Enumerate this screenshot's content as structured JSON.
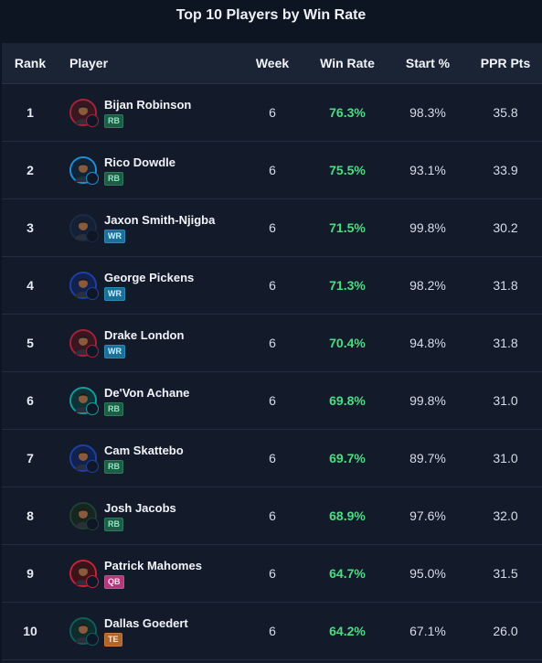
{
  "title": "Top 10 Players by Win Rate",
  "columns": {
    "rank": "Rank",
    "player": "Player",
    "week": "Week",
    "win_rate": "Win Rate",
    "start_pct": "Start %",
    "ppr": "PPR Pts"
  },
  "colors": {
    "win_rate": "#4ade80",
    "RB": "#1f5c46",
    "WR": "#1d6f96",
    "QB": "#b23a7a",
    "TE": "#b0652a"
  },
  "rows": [
    {
      "rank": "1",
      "name": "Bijan Robinson",
      "pos": "RB",
      "week": "6",
      "win_rate": "76.3%",
      "start_pct": "98.3%",
      "ppr": "35.8",
      "ring": "#a3233a",
      "bg": "#3a1620",
      "team_icon": "falcons-logo-icon"
    },
    {
      "rank": "2",
      "name": "Rico Dowdle",
      "pos": "RB",
      "week": "6",
      "win_rate": "75.5%",
      "start_pct": "93.1%",
      "ppr": "33.9",
      "ring": "#1d8fd6",
      "bg": "#0f2438",
      "team_icon": "panthers-logo-icon"
    },
    {
      "rank": "3",
      "name": "Jaxon Smith-Njigba",
      "pos": "WR",
      "week": "6",
      "win_rate": "71.5%",
      "start_pct": "99.8%",
      "ppr": "30.2",
      "ring": "#1b2b44",
      "bg": "#142036",
      "team_icon": "seahawks-logo-icon"
    },
    {
      "rank": "4",
      "name": "George Pickens",
      "pos": "WR",
      "week": "6",
      "win_rate": "71.3%",
      "start_pct": "98.2%",
      "ppr": "31.8",
      "ring": "#1e3fa8",
      "bg": "#10224d",
      "team_icon": "cowboys-logo-icon"
    },
    {
      "rank": "5",
      "name": "Drake London",
      "pos": "WR",
      "week": "6",
      "win_rate": "70.4%",
      "start_pct": "94.8%",
      "ppr": "31.8",
      "ring": "#a3233a",
      "bg": "#3a1620",
      "team_icon": "falcons-logo-icon"
    },
    {
      "rank": "6",
      "name": "De'Von Achane",
      "pos": "RB",
      "week": "6",
      "win_rate": "69.8%",
      "start_pct": "99.8%",
      "ppr": "31.0",
      "ring": "#139c9c",
      "bg": "#0e3336",
      "team_icon": "dolphins-logo-icon"
    },
    {
      "rank": "7",
      "name": "Cam Skattebo",
      "pos": "RB",
      "week": "6",
      "win_rate": "69.7%",
      "start_pct": "89.7%",
      "ppr": "31.0",
      "ring": "#1e3fa8",
      "bg": "#10224d",
      "team_icon": "giants-logo-icon"
    },
    {
      "rank": "8",
      "name": "Josh Jacobs",
      "pos": "RB",
      "week": "6",
      "win_rate": "68.9%",
      "start_pct": "97.6%",
      "ppr": "32.0",
      "ring": "#1f4032",
      "bg": "#14261e",
      "team_icon": "packers-logo-icon"
    },
    {
      "rank": "9",
      "name": "Patrick Mahomes",
      "pos": "QB",
      "week": "6",
      "win_rate": "64.7%",
      "start_pct": "95.0%",
      "ppr": "31.5",
      "ring": "#c8213a",
      "bg": "#3d1219",
      "team_icon": "chiefs-logo-icon"
    },
    {
      "rank": "10",
      "name": "Dallas Goedert",
      "pos": "TE",
      "week": "6",
      "win_rate": "64.2%",
      "start_pct": "67.1%",
      "ppr": "26.0",
      "ring": "#0f5e5e",
      "bg": "#0e2c2c",
      "team_icon": "eagles-logo-icon"
    }
  ]
}
